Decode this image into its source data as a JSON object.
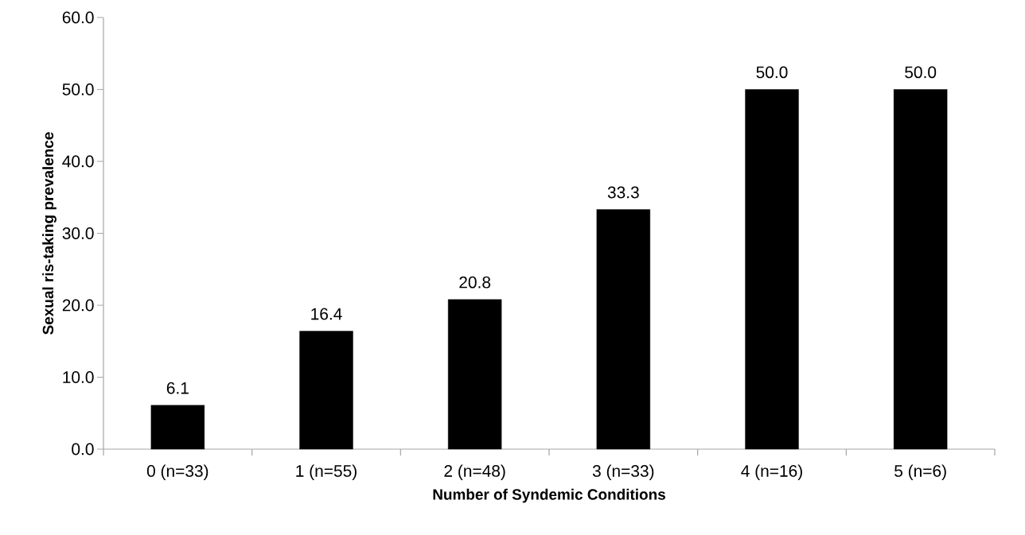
{
  "chart_data": {
    "type": "bar",
    "xlabel": "Number of Syndemic Conditions",
    "ylabel": "Sexual ris-taking prevalence",
    "categories": [
      "0 (n=33)",
      "1 (n=55)",
      "2 (n=48)",
      "3 (n=33)",
      "4 (n=16)",
      "5 (n=6)"
    ],
    "values": [
      6.1,
      16.4,
      20.8,
      33.3,
      50.0,
      50.0
    ],
    "color": "#000000",
    "value_labels": [
      "6.1",
      "16.4",
      "20.8",
      "33.3",
      "50.0",
      "50.0"
    ],
    "ylim": [
      0,
      60
    ],
    "yticks": [
      {
        "value": 0,
        "label": "0.0"
      },
      {
        "value": 10,
        "label": "10.0"
      },
      {
        "value": 20,
        "label": "20.0"
      },
      {
        "value": 30,
        "label": "30.0"
      },
      {
        "value": 40,
        "label": "40.0"
      },
      {
        "value": 50,
        "label": "50.0"
      },
      {
        "value": 60,
        "label": "60.0"
      }
    ],
    "grid": false
  }
}
